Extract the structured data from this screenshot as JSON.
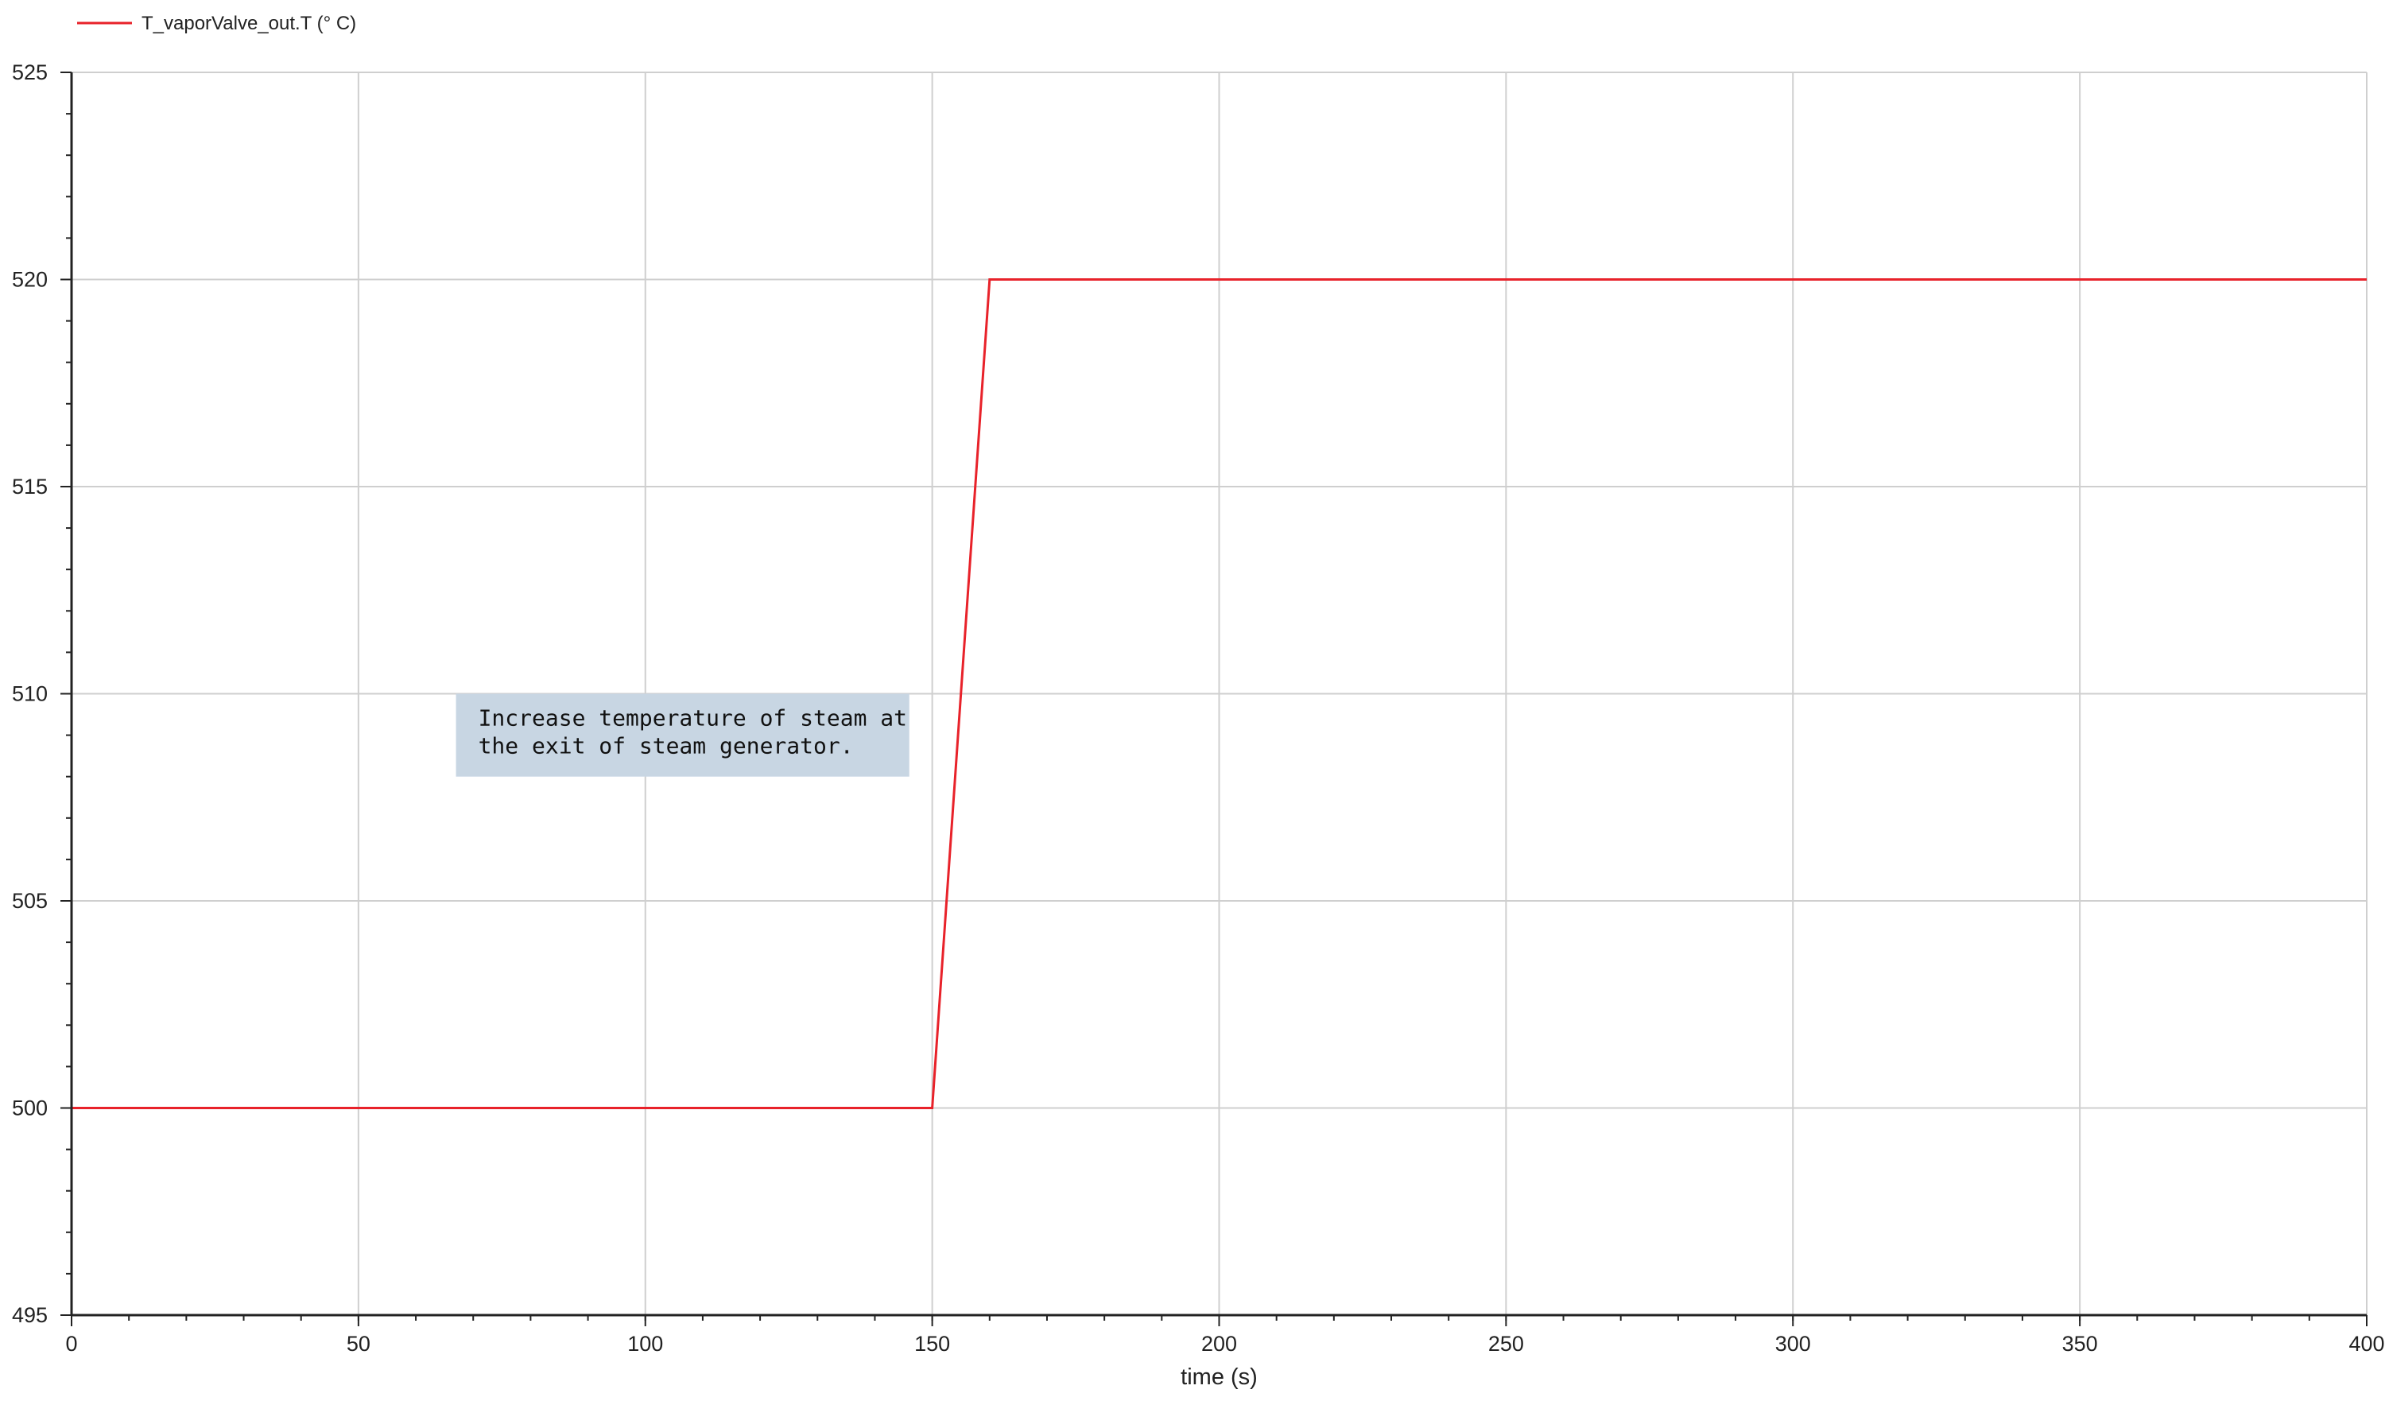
{
  "chart_data": {
    "type": "line",
    "xlabel": "time (s)",
    "ylabel": "",
    "xlim": [
      0,
      400
    ],
    "ylim": [
      495,
      525
    ],
    "x_ticks": [
      "0",
      "50",
      "100",
      "150",
      "200",
      "250",
      "300",
      "350",
      "400"
    ],
    "y_ticks": [
      "495",
      "500",
      "505",
      "510",
      "515",
      "520",
      "525"
    ],
    "grid": true,
    "legend_position": "top-left",
    "series": [
      {
        "name": "T_vaporValve_out.T (° C)",
        "color": "#e8222a",
        "x": [
          0,
          150,
          160,
          400
        ],
        "y": [
          500,
          500,
          520,
          520
        ]
      }
    ],
    "annotation": {
      "lines": [
        "Increase temperature of steam at",
        "the exit of steam generator."
      ],
      "x": [
        67,
        146
      ],
      "y": [
        508,
        510
      ],
      "background": "#c8d6e3"
    }
  }
}
